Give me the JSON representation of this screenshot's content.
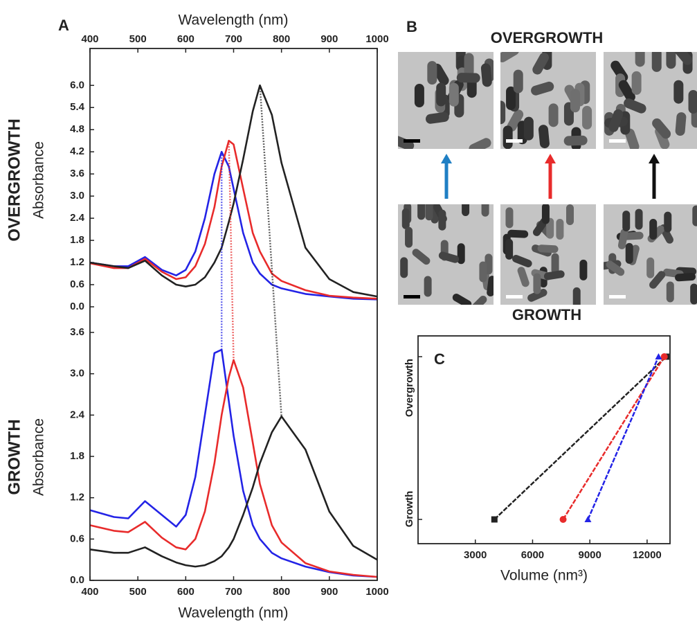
{
  "chart_data": [
    {
      "type": "line",
      "panel_label": "A",
      "side_label": "OVERGROWTH",
      "xlabel": "Wavelength (nm)",
      "ylabel": "Absorbance",
      "x": [
        400,
        450,
        480,
        515,
        550,
        580,
        600,
        620,
        640,
        660,
        675,
        690,
        700,
        720,
        740,
        755,
        780,
        800,
        850,
        900,
        950,
        1000
      ],
      "xlim": [
        400,
        1000
      ],
      "xticks": [
        400,
        500,
        600,
        700,
        800,
        900,
        1000
      ],
      "xaxis": "top",
      "ylim": [
        0,
        7
      ],
      "yticks": [
        {
          "value": 0,
          "label": "0.0"
        },
        0.6,
        1.2,
        1.8,
        2.4,
        {
          "value": 3,
          "label": "3.0"
        },
        3.6,
        4.2,
        4.8,
        5.4,
        {
          "value": 6,
          "label": "6.0"
        }
      ],
      "series": [
        {
          "color": "#2323e6",
          "values": [
            1.2,
            1.1,
            1.1,
            1.35,
            1.0,
            0.85,
            1.0,
            1.5,
            2.4,
            3.6,
            4.2,
            3.8,
            3.2,
            2.0,
            1.2,
            0.9,
            0.6,
            0.5,
            0.35,
            0.28,
            0.22,
            0.2
          ]
        },
        {
          "color": "#e82b2b",
          "values": [
            1.18,
            1.05,
            1.05,
            1.3,
            0.95,
            0.75,
            0.8,
            1.1,
            1.7,
            2.7,
            3.8,
            4.5,
            4.4,
            3.2,
            2.0,
            1.5,
            0.9,
            0.7,
            0.45,
            0.3,
            0.25,
            0.22
          ]
        },
        {
          "color": "#222222",
          "values": [
            1.2,
            1.1,
            1.05,
            1.25,
            0.85,
            0.6,
            0.55,
            0.6,
            0.8,
            1.2,
            1.6,
            2.3,
            2.8,
            4.0,
            5.3,
            6.0,
            5.2,
            3.9,
            1.6,
            0.75,
            0.4,
            0.28
          ]
        }
      ]
    },
    {
      "type": "line",
      "side_label": "GROWTH",
      "xlabel": "Wavelength (nm)",
      "ylabel": "Absorbance",
      "x": [
        400,
        450,
        480,
        515,
        550,
        580,
        600,
        620,
        640,
        660,
        675,
        690,
        700,
        720,
        740,
        755,
        780,
        800,
        850,
        900,
        950,
        1000
      ],
      "xlim": [
        400,
        1000
      ],
      "xticks": [
        400,
        500,
        600,
        700,
        800,
        900,
        1000
      ],
      "xaxis": "bottom",
      "ylim": [
        0,
        3.6
      ],
      "yticks": [
        {
          "value": 0,
          "label": "0.0"
        },
        0.6,
        1.2,
        1.8,
        2.4,
        {
          "value": 3,
          "label": "3.0"
        },
        3.6
      ],
      "series": [
        {
          "color": "#2323e6",
          "values": [
            1.02,
            0.92,
            0.9,
            1.15,
            0.95,
            0.78,
            0.95,
            1.5,
            2.4,
            3.3,
            3.35,
            2.6,
            2.1,
            1.3,
            0.8,
            0.6,
            0.4,
            0.32,
            0.2,
            0.12,
            0.07,
            0.05
          ]
        },
        {
          "color": "#e82b2b",
          "values": [
            0.8,
            0.72,
            0.7,
            0.85,
            0.62,
            0.48,
            0.45,
            0.6,
            1.0,
            1.7,
            2.4,
            2.95,
            3.2,
            2.8,
            2.0,
            1.4,
            0.8,
            0.55,
            0.25,
            0.13,
            0.08,
            0.05
          ]
        },
        {
          "color": "#222222",
          "values": [
            0.45,
            0.4,
            0.4,
            0.48,
            0.35,
            0.26,
            0.22,
            0.2,
            0.22,
            0.28,
            0.35,
            0.48,
            0.6,
            0.95,
            1.35,
            1.7,
            2.15,
            2.38,
            1.9,
            1.0,
            0.5,
            0.3
          ]
        }
      ]
    },
    {
      "type": "slope",
      "panel_label": "C",
      "xlabel": "Volume (nm³)",
      "categories": [
        "Growth",
        "Overgrowth"
      ],
      "xlim": [
        0,
        13200
      ],
      "xticks": [
        3000,
        6000,
        9000,
        12000
      ],
      "series": [
        {
          "color": "#222222",
          "marker": "square",
          "values": [
            4000,
            13000
          ]
        },
        {
          "color": "#e82b2b",
          "marker": "circle",
          "values": [
            7600,
            12900
          ]
        },
        {
          "color": "#2323e6",
          "marker": "triangle",
          "values": [
            8900,
            12600
          ]
        }
      ]
    }
  ],
  "images": {
    "panel_label": "B",
    "top_label": "OVERGROWTH",
    "bottom_label": "GROWTH"
  }
}
